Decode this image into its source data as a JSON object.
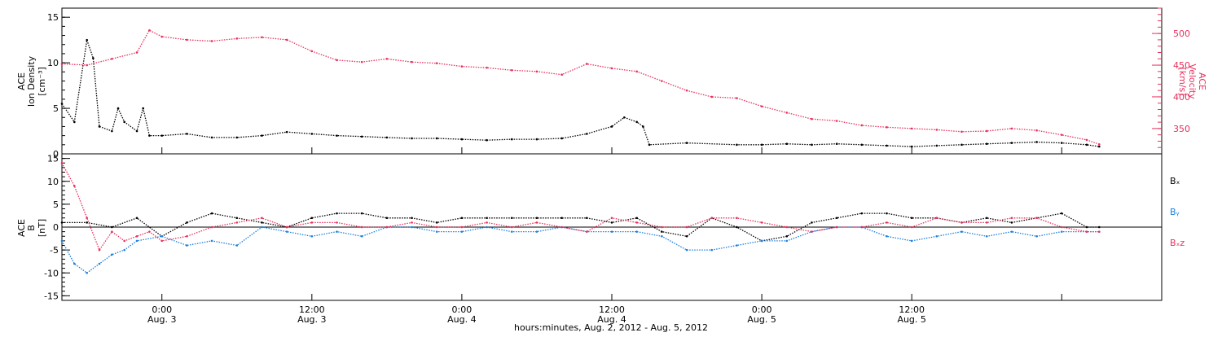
{
  "figure": {
    "xlabel": "hours:minutes, Aug.  2, 2012 - Aug.  5, 2012",
    "x_ticks": [
      {
        "time": "0:00",
        "date": "Aug. 3"
      },
      {
        "time": "12:00",
        "date": "Aug. 3"
      },
      {
        "time": "0:00",
        "date": "Aug. 4"
      },
      {
        "time": "12:00",
        "date": "Aug. 4"
      },
      {
        "time": "0:00",
        "date": "Aug. 5"
      },
      {
        "time": "12:00",
        "date": "Aug. 5"
      }
    ]
  },
  "colors": {
    "black": "#000000",
    "pink": "#e8305e",
    "blue": "#1a7fe0"
  },
  "chart_data": [
    {
      "type": "scatter",
      "panel": "top",
      "ylabel": [
        "ACE",
        "Ion Density",
        "[cm⁻³]"
      ],
      "ylim": [
        0,
        16
      ],
      "yticks": [
        0,
        5,
        10,
        15
      ],
      "y2label": [
        "ACE",
        "Velocity",
        "[km/s]"
      ],
      "y2lim": [
        310,
        540
      ],
      "y2ticks": [
        350,
        400,
        450,
        500
      ],
      "x_unit": "hours since 2012-08-02 00:00",
      "xlim": [
        16,
        104
      ],
      "series": [
        {
          "axis": "left",
          "color": "#000000",
          "x": [
            16,
            17,
            18,
            18.5,
            19,
            20,
            20.5,
            21,
            22,
            22.5,
            23,
            24,
            26,
            28,
            30,
            32,
            34,
            36,
            38,
            40,
            42,
            44,
            46,
            48,
            50,
            52,
            54,
            56,
            58,
            60,
            61,
            62,
            62.5,
            63,
            66,
            70,
            72,
            74,
            76,
            78,
            80,
            82,
            84,
            86,
            88,
            90,
            92,
            94,
            96,
            98,
            99
          ],
          "y": [
            5.5,
            3.5,
            12.5,
            10.5,
            3,
            2.5,
            5,
            3.5,
            2.5,
            5,
            2,
            2,
            2.2,
            1.8,
            1.8,
            2,
            2.4,
            2.2,
            2,
            1.9,
            1.8,
            1.7,
            1.7,
            1.6,
            1.5,
            1.6,
            1.6,
            1.7,
            2.2,
            3,
            4,
            3.5,
            3,
            1,
            1.2,
            1,
            1,
            1.1,
            1,
            1.1,
            1,
            0.9,
            0.8,
            0.9,
            1,
            1.1,
            1.2,
            1.3,
            1.2,
            1,
            0.8
          ]
        },
        {
          "axis": "right",
          "color": "#e8305e",
          "x": [
            16,
            18,
            20,
            22,
            23,
            24,
            26,
            28,
            30,
            32,
            34,
            36,
            38,
            40,
            42,
            44,
            46,
            48,
            50,
            52,
            54,
            56,
            58,
            60,
            62,
            64,
            66,
            68,
            70,
            72,
            74,
            76,
            78,
            80,
            82,
            84,
            86,
            88,
            90,
            92,
            94,
            96,
            98,
            99
          ],
          "y": [
            452,
            450,
            460,
            470,
            505,
            495,
            490,
            488,
            492,
            494,
            490,
            472,
            458,
            455,
            460,
            455,
            453,
            448,
            446,
            442,
            440,
            435,
            452,
            445,
            440,
            425,
            410,
            400,
            398,
            385,
            375,
            365,
            362,
            355,
            352,
            350,
            348,
            345,
            346,
            350,
            347,
            340,
            332,
            325
          ]
        }
      ]
    },
    {
      "type": "scatter",
      "panel": "bottom",
      "ylabel": [
        "ACE",
        "B",
        "[nT]"
      ],
      "ylim": [
        -16,
        16
      ],
      "yticks": [
        -15,
        -10,
        -5,
        0,
        5,
        10,
        15
      ],
      "x_unit": "hours since 2012-08-02 00:00",
      "xlim": [
        16,
        104
      ],
      "series": [
        {
          "name": "Bₓ",
          "color": "#000000",
          "x": [
            16,
            18,
            20,
            22,
            24,
            26,
            28,
            30,
            32,
            34,
            36,
            38,
            40,
            42,
            44,
            46,
            48,
            50,
            52,
            54,
            56,
            58,
            60,
            62,
            64,
            66,
            68,
            70,
            72,
            74,
            76,
            78,
            80,
            82,
            84,
            86,
            88,
            90,
            92,
            94,
            96,
            98,
            99
          ],
          "y": [
            1,
            1,
            0,
            2,
            -2,
            1,
            3,
            2,
            1,
            0,
            2,
            3,
            3,
            2,
            2,
            1,
            2,
            2,
            2,
            2,
            2,
            2,
            1,
            2,
            -1,
            -2,
            2,
            0,
            -3,
            -2,
            1,
            2,
            3,
            3,
            2,
            2,
            1,
            2,
            1,
            2,
            3,
            0,
            0
          ]
        },
        {
          "name": "Bᵧ",
          "color": "#1a7fe0",
          "x": [
            16,
            17,
            18,
            19,
            20,
            21,
            22,
            24,
            26,
            28,
            30,
            32,
            34,
            36,
            38,
            40,
            42,
            44,
            46,
            48,
            50,
            52,
            54,
            56,
            58,
            60,
            62,
            64,
            66,
            68,
            70,
            72,
            74,
            76,
            78,
            80,
            82,
            84,
            86,
            88,
            90,
            92,
            94,
            96,
            98,
            99
          ],
          "y": [
            -3,
            -8,
            -10,
            -8,
            -6,
            -5,
            -3,
            -2,
            -4,
            -3,
            -4,
            0,
            -1,
            -2,
            -1,
            -2,
            0,
            0,
            -1,
            -1,
            0,
            -1,
            -1,
            0,
            -1,
            -1,
            -1,
            -2,
            -5,
            -5,
            -4,
            -3,
            -3,
            -1,
            0,
            0,
            -2,
            -3,
            -2,
            -1,
            -2,
            -1,
            -2,
            -1,
            -1,
            -1
          ]
        },
        {
          "name": "Bₓz",
          "color": "#e8305e",
          "x": [
            16,
            17,
            18,
            19,
            20,
            21,
            22,
            23,
            24,
            26,
            28,
            30,
            32,
            34,
            36,
            38,
            40,
            42,
            44,
            46,
            48,
            50,
            52,
            54,
            56,
            58,
            60,
            62,
            64,
            66,
            68,
            70,
            72,
            74,
            76,
            78,
            80,
            82,
            84,
            86,
            88,
            90,
            92,
            94,
            96,
            98,
            99
          ],
          "y": [
            14,
            9,
            2,
            -5,
            -1,
            -3,
            -2,
            -1,
            -3,
            -2,
            0,
            1,
            2,
            0,
            1,
            1,
            0,
            0,
            1,
            0,
            0,
            1,
            0,
            1,
            0,
            -1,
            2,
            1,
            0,
            0,
            2,
            2,
            1,
            0,
            -1,
            0,
            0,
            1,
            0,
            2,
            1,
            1,
            2,
            2,
            0,
            -1,
            -1
          ]
        }
      ],
      "legend": [
        "Bₓ",
        "Bᵧ",
        "Bₓz"
      ]
    }
  ]
}
